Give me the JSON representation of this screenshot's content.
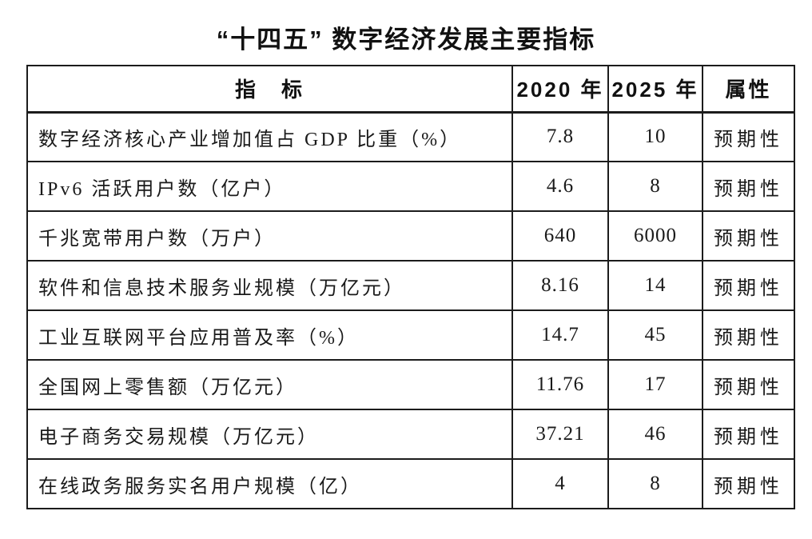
{
  "page_title": "“十四五” 数字经济发展主要指标",
  "table": {
    "headers": {
      "indicator": "指　标",
      "y2020": "2020 年",
      "y2025": "2025 年",
      "attribute": "属性"
    },
    "rows": [
      {
        "indicator": "数字经济核心产业增加值占 GDP 比重（%）",
        "y2020": "7.8",
        "y2025": "10",
        "attribute": "预期性"
      },
      {
        "indicator": "IPv6 活跃用户数（亿户）",
        "y2020": "4.6",
        "y2025": "8",
        "attribute": "预期性"
      },
      {
        "indicator": "千兆宽带用户数（万户）",
        "y2020": "640",
        "y2025": "6000",
        "attribute": "预期性"
      },
      {
        "indicator": "软件和信息技术服务业规模（万亿元）",
        "y2020": "8.16",
        "y2025": "14",
        "attribute": "预期性"
      },
      {
        "indicator": "工业互联网平台应用普及率（%）",
        "y2020": "14.7",
        "y2025": "45",
        "attribute": "预期性"
      },
      {
        "indicator": "全国网上零售额（万亿元）",
        "y2020": "11.76",
        "y2025": "17",
        "attribute": "预期性"
      },
      {
        "indicator": "电子商务交易规模（万亿元）",
        "y2020": "37.21",
        "y2025": "46",
        "attribute": "预期性"
      },
      {
        "indicator": "在线政务服务实名用户规模（亿）",
        "y2020": "4",
        "y2025": "8",
        "attribute": "预期性"
      }
    ]
  }
}
